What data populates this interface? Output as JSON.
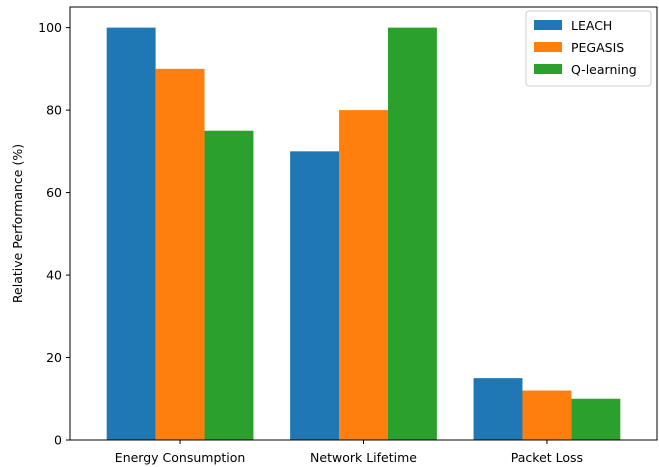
{
  "chart_data": {
    "type": "bar",
    "title": "",
    "xlabel": "",
    "ylabel": "Relative Performance (%)",
    "categories": [
      "Energy Consumption",
      "Network Lifetime",
      "Packet Loss"
    ],
    "series": [
      {
        "name": "LEACH",
        "values": [
          100,
          70,
          15
        ],
        "color": "#1f77b4"
      },
      {
        "name": "PEGASIS",
        "values": [
          90,
          80,
          12
        ],
        "color": "#ff7f0e"
      },
      {
        "name": "Q-learning",
        "values": [
          75,
          100,
          10
        ],
        "color": "#2ca02c"
      }
    ],
    "ylim": [
      0,
      105
    ],
    "yticks": [
      0,
      20,
      40,
      60,
      80,
      100
    ],
    "grid": false,
    "legend_position": "top-right"
  }
}
